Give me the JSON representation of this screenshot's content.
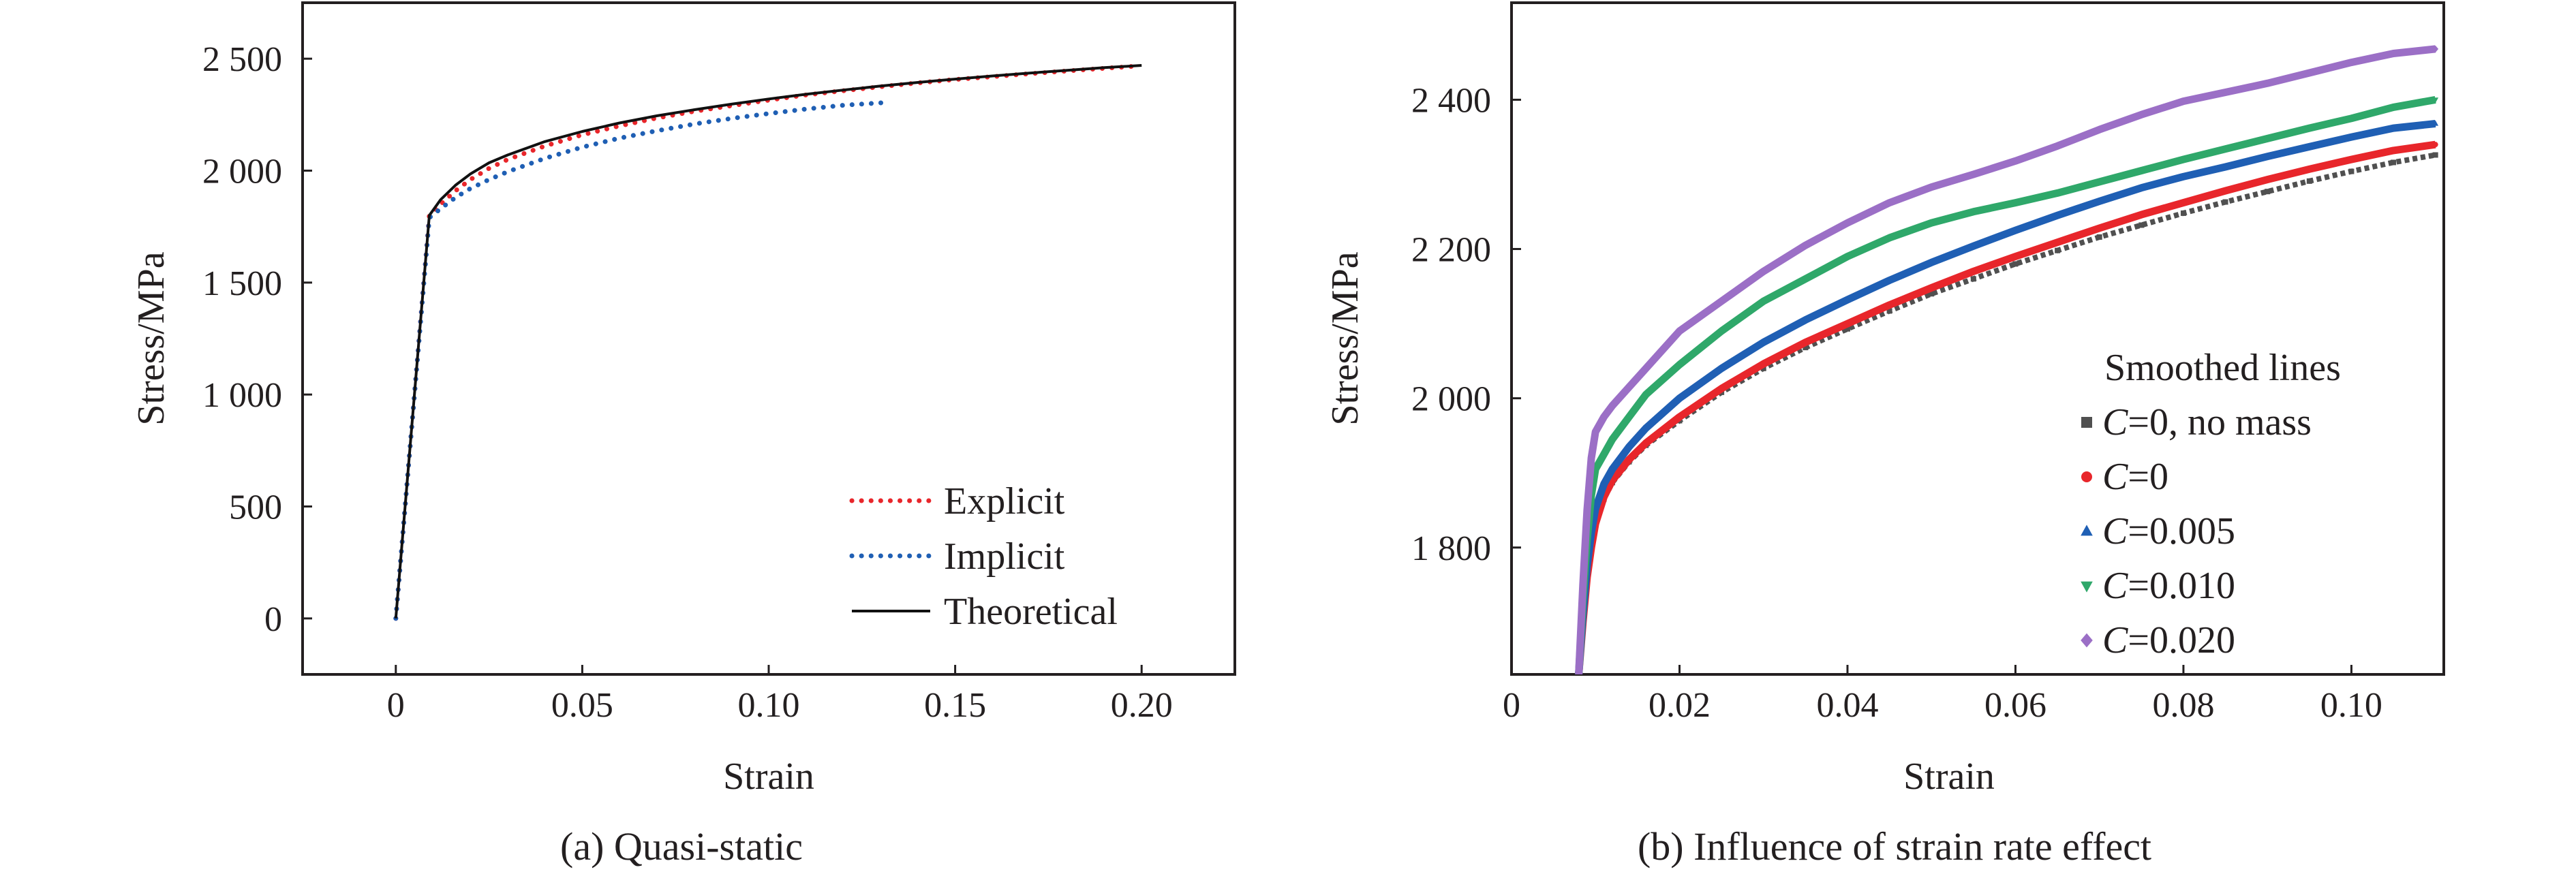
{
  "chart_data": [
    {
      "type": "line",
      "caption": "(a) Quasi-static",
      "xlabel": "Strain",
      "ylabel": "Stress/MPa",
      "xlim": [
        -0.025,
        0.225
      ],
      "ylim": [
        -250,
        2750
      ],
      "x_ticks": [
        0,
        0.05,
        0.1,
        0.15,
        0.2
      ],
      "x_tick_labels": [
        "0",
        "0.05",
        "0.10",
        "0.15",
        "0.20"
      ],
      "y_ticks": [
        0,
        500,
        1000,
        1500,
        2000,
        2500
      ],
      "y_tick_labels": [
        "0",
        "500",
        "1 000",
        "1 500",
        "2 000",
        "2 500"
      ],
      "grid": false,
      "legend_position": "bottom-right",
      "series": [
        {
          "name": "Explicit",
          "color": "#e8262b",
          "style": "dotted",
          "x": [
            0,
            0.004,
            0.009,
            0.012,
            0.016,
            0.02,
            0.025,
            0.03,
            0.04,
            0.05,
            0.06,
            0.07,
            0.08,
            0.09,
            0.1,
            0.11,
            0.12,
            0.13,
            0.14,
            0.15,
            0.16,
            0.17,
            0.18,
            0.19,
            0.198
          ],
          "y": [
            0,
            800,
            1800,
            1850,
            1910,
            1960,
            2010,
            2050,
            2110,
            2160,
            2200,
            2235,
            2265,
            2290,
            2315,
            2338,
            2357,
            2375,
            2392,
            2407,
            2420,
            2433,
            2445,
            2457,
            2466
          ]
        },
        {
          "name": "Implicit",
          "color": "#1f5fb4",
          "style": "dotted",
          "x": [
            0,
            0.004,
            0.009,
            0.012,
            0.016,
            0.02,
            0.025,
            0.03,
            0.04,
            0.05,
            0.06,
            0.07,
            0.08,
            0.09,
            0.1,
            0.11,
            0.12,
            0.132
          ],
          "y": [
            0,
            800,
            1790,
            1830,
            1880,
            1920,
            1960,
            1995,
            2055,
            2105,
            2145,
            2178,
            2208,
            2233,
            2255,
            2275,
            2292,
            2305
          ]
        },
        {
          "name": "Theoretical",
          "color": "#111111",
          "style": "solid",
          "x": [
            0,
            0.009,
            0.012,
            0.016,
            0.02,
            0.025,
            0.03,
            0.04,
            0.05,
            0.06,
            0.07,
            0.08,
            0.09,
            0.1,
            0.11,
            0.12,
            0.13,
            0.14,
            0.15,
            0.16,
            0.17,
            0.18,
            0.19,
            0.2
          ],
          "y": [
            0,
            1800,
            1870,
            1935,
            1985,
            2035,
            2070,
            2130,
            2175,
            2213,
            2245,
            2272,
            2297,
            2320,
            2341,
            2360,
            2378,
            2394,
            2409,
            2423,
            2436,
            2448,
            2460,
            2470
          ]
        }
      ]
    },
    {
      "type": "line",
      "caption": "(b) Influence of strain rate effect",
      "xlabel": "Strain",
      "ylabel": "Stress/MPa",
      "xlim": [
        0,
        0.111
      ],
      "ylim": [
        1630,
        2530
      ],
      "x_ticks": [
        0,
        0.02,
        0.04,
        0.06,
        0.08,
        0.1
      ],
      "x_tick_labels": [
        "0",
        "0.02",
        "0.04",
        "0.06",
        "0.08",
        "0.10"
      ],
      "y_ticks": [
        1800,
        2000,
        2200,
        2400
      ],
      "y_tick_labels": [
        "1 800",
        "2 000",
        "2 200",
        "2 400"
      ],
      "grid": false,
      "legend_title": "Smoothed lines",
      "legend_position": "bottom-right",
      "series": [
        {
          "name_italic": "C",
          "name_rest": "=0, no mass",
          "color": "#505050",
          "marker": "square",
          "x": [
            0.008,
            0.0085,
            0.009,
            0.0095,
            0.01,
            0.011,
            0.012,
            0.014,
            0.016,
            0.02,
            0.025,
            0.03,
            0.035,
            0.04,
            0.045,
            0.05,
            0.055,
            0.06,
            0.065,
            0.07,
            0.075,
            0.08,
            0.085,
            0.09,
            0.095,
            0.1,
            0.105,
            0.11
          ],
          "y": [
            1630,
            1700,
            1760,
            1800,
            1830,
            1865,
            1887,
            1915,
            1937,
            1970,
            2008,
            2040,
            2068,
            2093,
            2117,
            2140,
            2160,
            2180,
            2198,
            2216,
            2232,
            2248,
            2263,
            2277,
            2291,
            2304,
            2316,
            2326
          ]
        },
        {
          "name_italic": "C",
          "name_rest": "=0",
          "color": "#e8262b",
          "marker": "circle",
          "x": [
            0.008,
            0.0085,
            0.009,
            0.0095,
            0.01,
            0.011,
            0.012,
            0.014,
            0.016,
            0.02,
            0.025,
            0.03,
            0.035,
            0.04,
            0.045,
            0.05,
            0.055,
            0.06,
            0.065,
            0.07,
            0.075,
            0.08,
            0.085,
            0.09,
            0.095,
            0.1,
            0.105,
            0.11
          ],
          "y": [
            1630,
            1700,
            1760,
            1800,
            1832,
            1868,
            1890,
            1918,
            1940,
            1975,
            2013,
            2046,
            2075,
            2100,
            2125,
            2148,
            2170,
            2190,
            2209,
            2228,
            2246,
            2262,
            2278,
            2293,
            2307,
            2320,
            2332,
            2340
          ]
        },
        {
          "name_italic": "C",
          "name_rest": "=0.005",
          "color": "#1f5fb4",
          "marker": "triangle",
          "x": [
            0.008,
            0.0085,
            0.009,
            0.0095,
            0.01,
            0.011,
            0.012,
            0.014,
            0.016,
            0.02,
            0.025,
            0.03,
            0.035,
            0.04,
            0.045,
            0.05,
            0.055,
            0.06,
            0.065,
            0.07,
            0.075,
            0.08,
            0.085,
            0.09,
            0.095,
            0.1,
            0.105,
            0.11
          ],
          "y": [
            1630,
            1710,
            1775,
            1820,
            1852,
            1885,
            1905,
            1935,
            1960,
            2000,
            2040,
            2075,
            2105,
            2132,
            2158,
            2182,
            2204,
            2225,
            2245,
            2264,
            2282,
            2297,
            2310,
            2324,
            2337,
            2350,
            2362,
            2368
          ]
        },
        {
          "name_italic": "C",
          "name_rest": "=0.010",
          "color": "#2fa86a",
          "marker": "triangle-down",
          "x": [
            0.008,
            0.0085,
            0.009,
            0.0095,
            0.01,
            0.011,
            0.012,
            0.014,
            0.016,
            0.02,
            0.025,
            0.03,
            0.035,
            0.04,
            0.045,
            0.05,
            0.055,
            0.06,
            0.065,
            0.07,
            0.075,
            0.08,
            0.085,
            0.09,
            0.095,
            0.1,
            0.105,
            0.11
          ],
          "y": [
            1630,
            1730,
            1810,
            1870,
            1905,
            1925,
            1945,
            1975,
            2005,
            2045,
            2090,
            2130,
            2160,
            2190,
            2215,
            2235,
            2250,
            2262,
            2275,
            2290,
            2305,
            2320,
            2334,
            2348,
            2362,
            2375,
            2390,
            2400
          ]
        },
        {
          "name_italic": "C",
          "name_rest": "=0.020",
          "color": "#9b6fc6",
          "marker": "diamond",
          "x": [
            0.008,
            0.0085,
            0.009,
            0.0095,
            0.01,
            0.011,
            0.012,
            0.014,
            0.016,
            0.02,
            0.025,
            0.03,
            0.035,
            0.04,
            0.045,
            0.05,
            0.055,
            0.06,
            0.065,
            0.07,
            0.075,
            0.08,
            0.085,
            0.09,
            0.095,
            0.1,
            0.105,
            0.11
          ],
          "y": [
            1630,
            1750,
            1850,
            1920,
            1955,
            1975,
            1990,
            2015,
            2040,
            2090,
            2130,
            2170,
            2205,
            2235,
            2262,
            2283,
            2300,
            2318,
            2338,
            2360,
            2380,
            2398,
            2410,
            2422,
            2436,
            2450,
            2462,
            2468
          ]
        }
      ]
    }
  ]
}
